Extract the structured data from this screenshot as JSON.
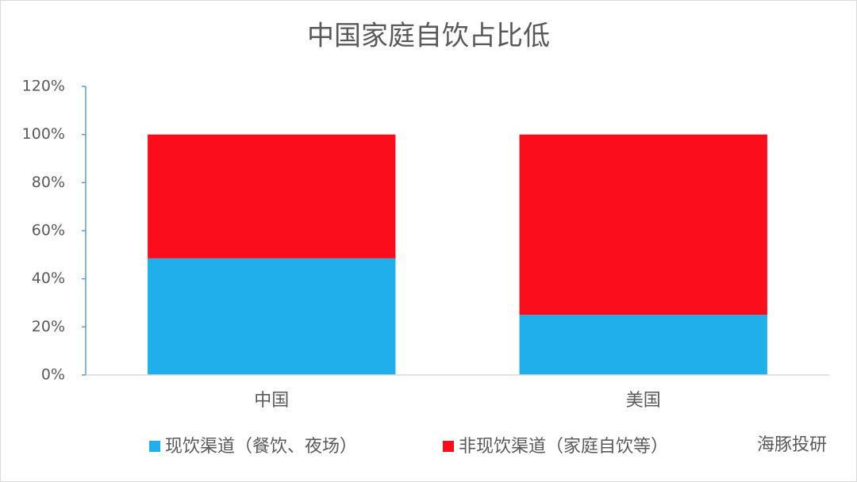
{
  "chart_data": {
    "type": "stacked_bar",
    "title": "中国家庭自饮占比低",
    "categories": [
      "中国",
      "美国"
    ],
    "series": [
      {
        "name": "现饮渠道（餐饮、夜场）",
        "color": "#1fb0ec",
        "values": [
          48.5,
          25
        ]
      },
      {
        "name": "非现饮渠道（家庭自饮等）",
        "color": "#fc0d1b",
        "values": [
          51.5,
          75
        ]
      }
    ],
    "ylim": [
      0,
      120
    ],
    "yticks": [
      {
        "value": 0,
        "label": "0%"
      },
      {
        "value": 20,
        "label": "20%"
      },
      {
        "value": 40,
        "label": "40%"
      },
      {
        "value": 60,
        "label": "60%"
      },
      {
        "value": 80,
        "label": "80%"
      },
      {
        "value": 100,
        "label": "100%"
      },
      {
        "value": 120,
        "label": "120%"
      }
    ],
    "legend": "bottom",
    "watermark": "海豚投研"
  }
}
